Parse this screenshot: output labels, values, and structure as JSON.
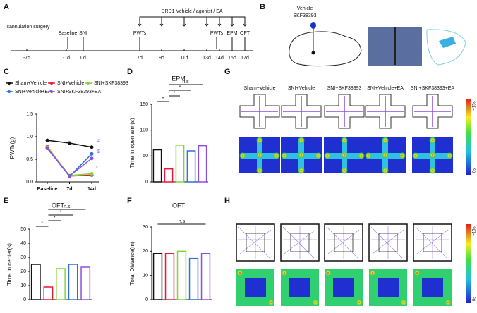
{
  "panels": [
    "A",
    "B",
    "C",
    "D",
    "E",
    "F",
    "G",
    "H"
  ],
  "timeline": {
    "header": "DRD1 Vehicle / agonist / EA",
    "events": [
      "cannulation surgery",
      "Baseline",
      "SNI",
      "PWTs",
      "PWTs",
      "EPM",
      "OFT"
    ],
    "days": [
      "-7d",
      "-1d",
      "0d",
      "7d",
      "9d",
      "11d",
      "13d",
      "14d",
      "15d",
      "17d"
    ]
  },
  "panel_b": {
    "labels": [
      "Vehicle",
      "SKF38393"
    ]
  },
  "chart_data": [
    {
      "type": "line",
      "ylabel": "PWTs(g)",
      "categories": [
        "Baseline",
        "7d",
        "14d"
      ],
      "ylim": [
        0,
        1.5
      ],
      "yticks": [
        {
          "value": 0,
          "label": "0.0"
        },
        0.5,
        {
          "value": 1,
          "label": "1.0"
        },
        1.5
      ],
      "series": [
        {
          "name": "Sham+Vehicle",
          "color": "#111111",
          "values": [
            0.92,
            0.86,
            0.77
          ]
        },
        {
          "name": "SNI+Vehicle",
          "color": "#e8173c",
          "values": [
            0.78,
            0.13,
            0.15
          ]
        },
        {
          "name": "SNI+SKF38393",
          "color": "#7ed63a",
          "values": [
            0.77,
            0.14,
            0.18
          ]
        },
        {
          "name": "SNI+Vehicle+EA",
          "color": "#2f6fe0",
          "values": [
            0.75,
            0.12,
            0.62
          ]
        },
        {
          "name": "SNI+SKF38393+EA",
          "color": "#8a4fe0",
          "values": [
            0.74,
            0.13,
            0.52
          ]
        }
      ],
      "annotations": [
        "#",
        "$",
        "*"
      ]
    },
    {
      "type": "bar",
      "title": "EPM",
      "ylabel": "Time in open arm(s)",
      "values": [
        62,
        25,
        71,
        60,
        70
      ],
      "colors": [
        "#111111",
        "#e8173c",
        "#7ed63a",
        "#2f6fe0",
        "#8a4fe0"
      ],
      "ylim": [
        0,
        150
      ],
      "yticks": [
        0,
        50,
        100,
        150
      ],
      "significance": [
        "*",
        "*",
        "*",
        "n.s"
      ]
    },
    {
      "type": "bar",
      "title": "OFT",
      "ylabel": "Time in center(s)",
      "values": [
        25,
        9,
        22,
        25,
        23
      ],
      "colors": [
        "#111111",
        "#e8173c",
        "#7ed63a",
        "#2f6fe0",
        "#8a4fe0"
      ],
      "ylim": [
        0,
        50
      ],
      "yticks": [
        0,
        10,
        20,
        30,
        40,
        50
      ],
      "significance": [
        "*",
        "*",
        "*",
        "n.s"
      ]
    },
    {
      "type": "bar",
      "title": "OFT",
      "ylabel": "Total Distance(m)",
      "values": [
        19,
        19,
        20,
        17,
        19
      ],
      "colors": [
        "#111111",
        "#e8173c",
        "#7ed63a",
        "#2f6fe0",
        "#8a4fe0"
      ],
      "ylim": [
        0,
        30
      ],
      "yticks": [
        0,
        10,
        20,
        30
      ],
      "significance": [
        "n.s"
      ]
    }
  ],
  "panel_g": {
    "groups": [
      "Sham+Vehicle",
      "SNI+Vehicle",
      "SNI+SKF38393",
      "SNI+Vehicle+EA",
      "SNI+SKF38393+EA"
    ],
    "scale": [
      "~15s",
      "0s"
    ]
  },
  "panel_h": {
    "scale": [
      "~15s",
      "0s"
    ]
  }
}
